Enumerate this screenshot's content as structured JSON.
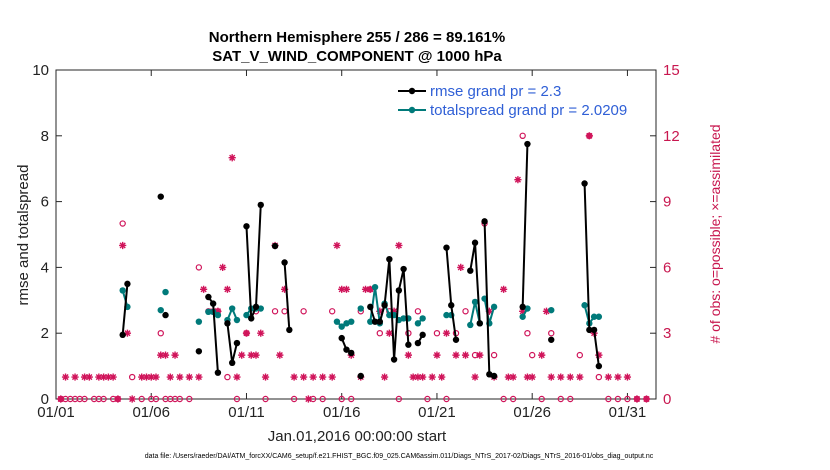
{
  "chart_data": {
    "type": "line",
    "title": "Northern Hemisphere 255 / 286 = 89.161%",
    "subtitle": "SAT_V_WIND_COMPONENT @ 1000 hPa",
    "xlabel": "Jan.01,2016 00:00:00 start",
    "ylabel": "rmse and totalspread",
    "y2label": "# of obs: o=possible; ×=assimilated",
    "xlim": [
      0,
      31.5
    ],
    "ylim": [
      0,
      10
    ],
    "y2lim": [
      0,
      15
    ],
    "xticks": [
      0,
      5,
      10,
      15,
      20,
      25,
      30
    ],
    "xtick_labels": [
      "01/01",
      "01/06",
      "01/11",
      "01/16",
      "01/21",
      "01/26",
      "01/31"
    ],
    "yticks": [
      0,
      2,
      4,
      6,
      8,
      10
    ],
    "y2ticks": [
      0,
      3,
      6,
      9,
      12,
      15
    ],
    "colors": {
      "rmse": "#000000",
      "spread": "#007a7a",
      "obs": "#d0145a",
      "legend_text": "#2f5fd6"
    },
    "series": [
      {
        "name": "rmse grand pr = 2.3",
        "color": "#000000",
        "segments": [
          [
            [
              3.5,
              1.95
            ],
            [
              3.75,
              3.5
            ]
          ],
          [
            [
              5.5,
              6.15
            ]
          ],
          [
            [
              5.75,
              2.55
            ]
          ],
          [
            [
              7.5,
              1.45
            ]
          ],
          [
            [
              8.0,
              3.1
            ],
            [
              8.25,
              2.9
            ],
            [
              8.5,
              0.8
            ]
          ],
          [
            [
              9.0,
              2.3
            ],
            [
              9.25,
              1.1
            ],
            [
              9.5,
              1.7
            ]
          ],
          [
            [
              10.0,
              5.25
            ],
            [
              10.25,
              2.45
            ],
            [
              10.5,
              2.8
            ],
            [
              10.75,
              5.9
            ]
          ],
          [
            [
              11.5,
              4.65
            ]
          ],
          [
            [
              12.0,
              4.15
            ],
            [
              12.25,
              2.1
            ]
          ],
          [
            [
              15.0,
              1.85
            ],
            [
              15.25,
              1.5
            ],
            [
              15.5,
              1.4
            ]
          ],
          [
            [
              16.0,
              0.7
            ]
          ],
          [
            [
              16.5,
              2.8
            ],
            [
              16.75,
              2.35
            ],
            [
              17.0,
              2.35
            ],
            [
              17.25,
              2.85
            ],
            [
              17.5,
              4.25
            ],
            [
              17.75,
              1.2
            ],
            [
              18.0,
              3.3
            ],
            [
              18.25,
              3.95
            ],
            [
              18.5,
              1.65
            ]
          ],
          [
            [
              19.0,
              1.7
            ],
            [
              19.25,
              1.95
            ]
          ],
          [
            [
              20.5,
              4.6
            ],
            [
              20.75,
              2.85
            ],
            [
              21.0,
              1.8
            ]
          ],
          [
            [
              21.75,
              3.9
            ],
            [
              22.0,
              4.75
            ],
            [
              22.25,
              2.3
            ]
          ],
          [
            [
              22.5,
              5.4
            ],
            [
              22.75,
              0.75
            ],
            [
              23.0,
              0.7
            ]
          ],
          [
            [
              24.5,
              2.8
            ],
            [
              24.75,
              7.75
            ]
          ],
          [
            [
              26.0,
              1.8
            ]
          ],
          [
            [
              27.75,
              6.55
            ],
            [
              28.0,
              2.1
            ],
            [
              28.25,
              2.1
            ],
            [
              28.5,
              1.0
            ]
          ]
        ]
      },
      {
        "name": "totalspread grand pr = 2.0209",
        "color": "#007a7a",
        "segments": [
          [
            [
              3.5,
              3.3
            ],
            [
              3.75,
              2.8
            ]
          ],
          [
            [
              5.5,
              2.7
            ]
          ],
          [
            [
              5.75,
              3.25
            ]
          ],
          [
            [
              7.5,
              2.35
            ]
          ],
          [
            [
              8.0,
              2.65
            ],
            [
              8.25,
              2.65
            ],
            [
              8.5,
              2.55
            ]
          ],
          [
            [
              9.0,
              2.4
            ],
            [
              9.25,
              2.75
            ],
            [
              9.5,
              2.4
            ]
          ],
          [
            [
              10.0,
              2.55
            ],
            [
              10.25,
              2.75
            ],
            [
              10.5,
              2.75
            ],
            [
              10.75,
              2.75
            ]
          ],
          [
            [
              14.75,
              2.35
            ],
            [
              15.0,
              2.2
            ],
            [
              15.25,
              2.3
            ],
            [
              15.5,
              2.35
            ]
          ],
          [
            [
              16.0,
              2.75
            ]
          ],
          [
            [
              16.5,
              2.35
            ],
            [
              16.75,
              3.4
            ],
            [
              17.0,
              2.3
            ],
            [
              17.25,
              2.9
            ],
            [
              17.5,
              2.55
            ],
            [
              17.75,
              2.55
            ],
            [
              18.0,
              2.4
            ],
            [
              18.25,
              2.45
            ],
            [
              18.5,
              2.45
            ]
          ],
          [
            [
              19.0,
              2.3
            ],
            [
              19.25,
              2.45
            ]
          ],
          [
            [
              20.5,
              2.55
            ],
            [
              20.75,
              2.55
            ]
          ],
          [
            [
              21.75,
              2.25
            ],
            [
              22.0,
              2.95
            ],
            [
              22.25,
              2.3
            ]
          ],
          [
            [
              22.5,
              3.05
            ],
            [
              22.75,
              2.3
            ],
            [
              23.0,
              2.8
            ]
          ],
          [
            [
              24.5,
              2.5
            ],
            [
              24.75,
              2.75
            ]
          ],
          [
            [
              26.0,
              2.7
            ]
          ],
          [
            [
              27.75,
              2.85
            ],
            [
              28.0,
              2.3
            ],
            [
              28.25,
              2.5
            ],
            [
              28.5,
              2.5
            ]
          ]
        ]
      }
    ],
    "obs_possible": [
      [
        0.25,
        0
      ],
      [
        0.5,
        0
      ],
      [
        0.75,
        0
      ],
      [
        1.0,
        0
      ],
      [
        1.25,
        0
      ],
      [
        1.5,
        0
      ],
      [
        2.0,
        0
      ],
      [
        2.25,
        0
      ],
      [
        2.5,
        0
      ],
      [
        3.0,
        0
      ],
      [
        3.25,
        0
      ],
      [
        3.5,
        8
      ],
      [
        4.0,
        1
      ],
      [
        4.5,
        0
      ],
      [
        5.0,
        0
      ],
      [
        5.25,
        0
      ],
      [
        5.5,
        3
      ],
      [
        5.75,
        0
      ],
      [
        6.0,
        0
      ],
      [
        6.25,
        0
      ],
      [
        6.5,
        0
      ],
      [
        7.0,
        0
      ],
      [
        7.5,
        6
      ],
      [
        8.0,
        4
      ],
      [
        8.5,
        4
      ],
      [
        9.0,
        1
      ],
      [
        9.5,
        0
      ],
      [
        10.0,
        3
      ],
      [
        10.5,
        4
      ],
      [
        11.0,
        0
      ],
      [
        11.5,
        4
      ],
      [
        12.0,
        4
      ],
      [
        12.5,
        0
      ],
      [
        13.0,
        4
      ],
      [
        13.5,
        0
      ],
      [
        14.0,
        0
      ],
      [
        14.5,
        4
      ],
      [
        15.0,
        0
      ],
      [
        15.5,
        0
      ],
      [
        16.0,
        4
      ],
      [
        16.5,
        5
      ],
      [
        17.0,
        3
      ],
      [
        17.5,
        4
      ],
      [
        18.0,
        0
      ],
      [
        18.5,
        3
      ],
      [
        19.0,
        4
      ],
      [
        19.5,
        0
      ],
      [
        20.0,
        3
      ],
      [
        20.5,
        0
      ],
      [
        21.0,
        3
      ],
      [
        21.5,
        4
      ],
      [
        22.0,
        2
      ],
      [
        22.5,
        8
      ],
      [
        23.0,
        2
      ],
      [
        23.5,
        0
      ],
      [
        24.0,
        0
      ],
      [
        24.5,
        12
      ],
      [
        24.75,
        3
      ],
      [
        25.0,
        2
      ],
      [
        25.5,
        0
      ],
      [
        26.0,
        3
      ],
      [
        26.5,
        0
      ],
      [
        27.0,
        0
      ],
      [
        27.5,
        2
      ],
      [
        28.0,
        12
      ],
      [
        28.5,
        1
      ],
      [
        29.0,
        0
      ],
      [
        29.5,
        0
      ],
      [
        30.0,
        0
      ],
      [
        30.5,
        0
      ],
      [
        31.0,
        0
      ]
    ],
    "obs_assimilated": [
      [
        0.25,
        0
      ],
      [
        0.5,
        1
      ],
      [
        1.0,
        1
      ],
      [
        1.5,
        1
      ],
      [
        1.75,
        1
      ],
      [
        2.25,
        1
      ],
      [
        2.5,
        1
      ],
      [
        2.75,
        1
      ],
      [
        3.0,
        1
      ],
      [
        3.25,
        0
      ],
      [
        3.5,
        7
      ],
      [
        3.75,
        3
      ],
      [
        4.0,
        0
      ],
      [
        4.5,
        1
      ],
      [
        4.75,
        1
      ],
      [
        5.0,
        1
      ],
      [
        5.25,
        1
      ],
      [
        5.5,
        2
      ],
      [
        5.75,
        2
      ],
      [
        6.0,
        1
      ],
      [
        6.25,
        2
      ],
      [
        6.5,
        1
      ],
      [
        7.0,
        1
      ],
      [
        7.5,
        1
      ],
      [
        7.75,
        5
      ],
      [
        8.25,
        4
      ],
      [
        8.5,
        4
      ],
      [
        8.75,
        6
      ],
      [
        9.0,
        5
      ],
      [
        9.25,
        11
      ],
      [
        9.5,
        1
      ],
      [
        9.75,
        2
      ],
      [
        10.0,
        3
      ],
      [
        10.25,
        2
      ],
      [
        10.5,
        2
      ],
      [
        10.75,
        3
      ],
      [
        11.0,
        1
      ],
      [
        11.5,
        7
      ],
      [
        11.75,
        2
      ],
      [
        12.0,
        5
      ],
      [
        12.5,
        1
      ],
      [
        13.0,
        1
      ],
      [
        13.25,
        0
      ],
      [
        13.5,
        1
      ],
      [
        14.0,
        1
      ],
      [
        14.5,
        1
      ],
      [
        14.75,
        7
      ],
      [
        15.0,
        5
      ],
      [
        15.25,
        5
      ],
      [
        15.5,
        2
      ],
      [
        16.0,
        1
      ],
      [
        16.25,
        5
      ],
      [
        16.5,
        5
      ],
      [
        17.0,
        4
      ],
      [
        17.25,
        1
      ],
      [
        17.5,
        3
      ],
      [
        17.75,
        4
      ],
      [
        18.0,
        7
      ],
      [
        18.5,
        2
      ],
      [
        18.75,
        1
      ],
      [
        19.0,
        1
      ],
      [
        19.25,
        1
      ],
      [
        19.75,
        1
      ],
      [
        20.0,
        2
      ],
      [
        20.25,
        1
      ],
      [
        20.5,
        3
      ],
      [
        21.0,
        2
      ],
      [
        21.25,
        6
      ],
      [
        21.5,
        2
      ],
      [
        22.0,
        1
      ],
      [
        22.25,
        2
      ],
      [
        22.75,
        4
      ],
      [
        23.0,
        1
      ],
      [
        23.5,
        5
      ],
      [
        23.75,
        1
      ],
      [
        24.0,
        1
      ],
      [
        24.25,
        10
      ],
      [
        24.5,
        4
      ],
      [
        24.75,
        1
      ],
      [
        25.0,
        1
      ],
      [
        25.5,
        2
      ],
      [
        25.75,
        4
      ],
      [
        26.0,
        1
      ],
      [
        26.5,
        1
      ],
      [
        27.0,
        1
      ],
      [
        27.5,
        1
      ],
      [
        28.0,
        12
      ],
      [
        28.25,
        3
      ],
      [
        28.5,
        2
      ],
      [
        29.0,
        1
      ],
      [
        29.5,
        1
      ],
      [
        30.0,
        1
      ],
      [
        30.5,
        0
      ],
      [
        31.0,
        0
      ]
    ]
  },
  "footer": "data file: /Users/raeder/DAI/ATM_forcXX/CAM6_setup/f.e21.FHIST_BGC.f09_025.CAM6assim.011/Diags_NTrS_2017-02/Diags_NTrS_2016-01/obs_diag_output.nc"
}
